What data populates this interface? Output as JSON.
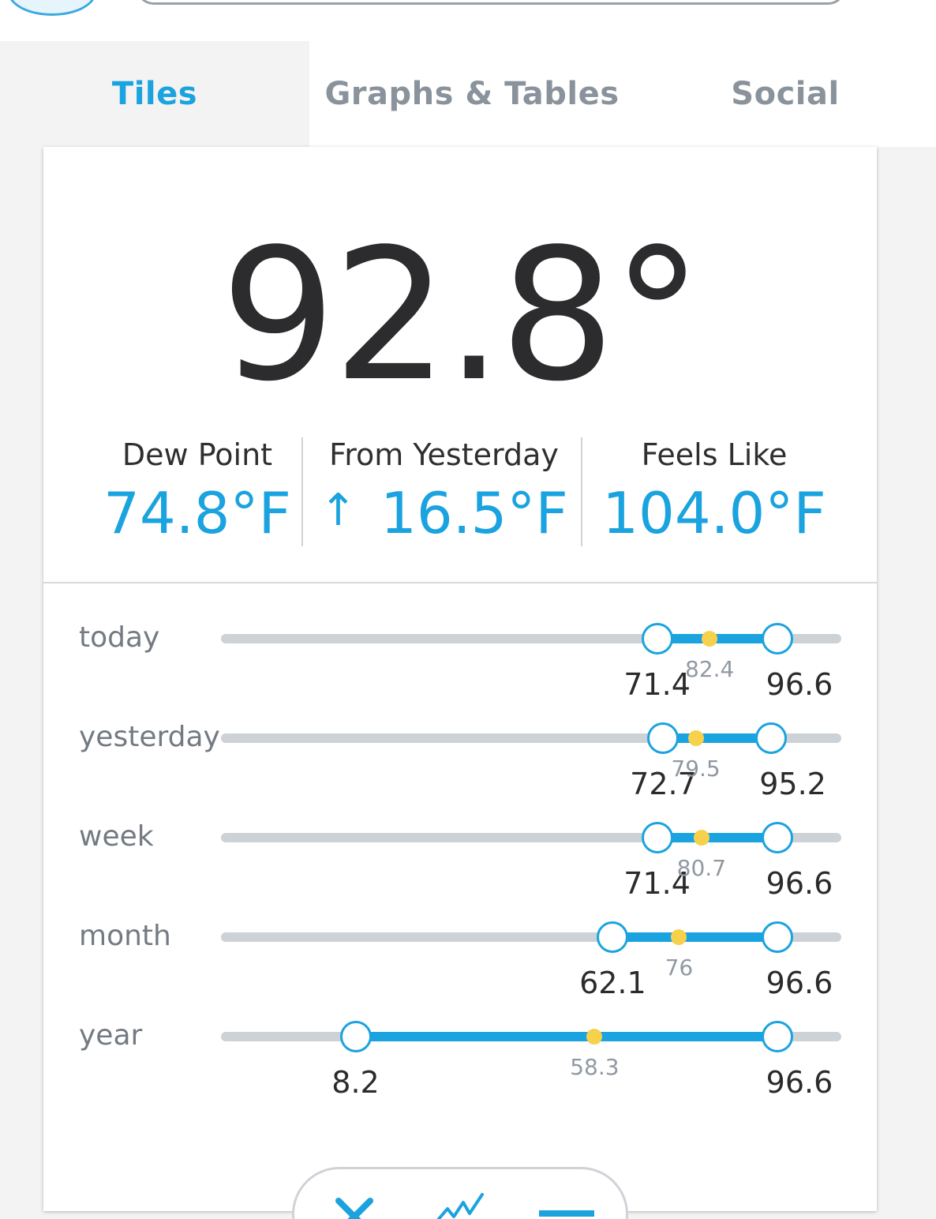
{
  "tabs": [
    {
      "label": "Tiles",
      "active": true
    },
    {
      "label": "Graphs & Tables",
      "active": false
    },
    {
      "label": "Social",
      "active": false
    }
  ],
  "current": {
    "temperature": "92.8°",
    "dew_point": {
      "label": "Dew Point",
      "value": "74.8°F"
    },
    "from_yesterday": {
      "label": "From Yesterday",
      "arrow": "↑",
      "value": "16.5°F"
    },
    "feels_like": {
      "label": "Feels Like",
      "value": "104.0°F"
    }
  },
  "ranges": {
    "scale_min": -20,
    "scale_max": 110,
    "rows": [
      {
        "label": "today",
        "min": "71.4",
        "avg": "82.4",
        "max": "96.6"
      },
      {
        "label": "yesterday",
        "min": "72.7",
        "avg": "79.5",
        "max": "95.2"
      },
      {
        "label": "week",
        "min": "71.4",
        "avg": "80.7",
        "max": "96.6"
      },
      {
        "label": "month",
        "min": "62.1",
        "avg": "76",
        "max": "96.6"
      },
      {
        "label": "year",
        "min": "8.2",
        "avg": "58.3",
        "max": "96.6"
      }
    ]
  },
  "toolbar": {
    "icons": [
      "close-icon",
      "line-chart-icon",
      "minus-icon"
    ]
  },
  "colors": {
    "accent": "#1aa3df",
    "average_dot": "#f7d14c",
    "track": "#cdd2d7"
  }
}
